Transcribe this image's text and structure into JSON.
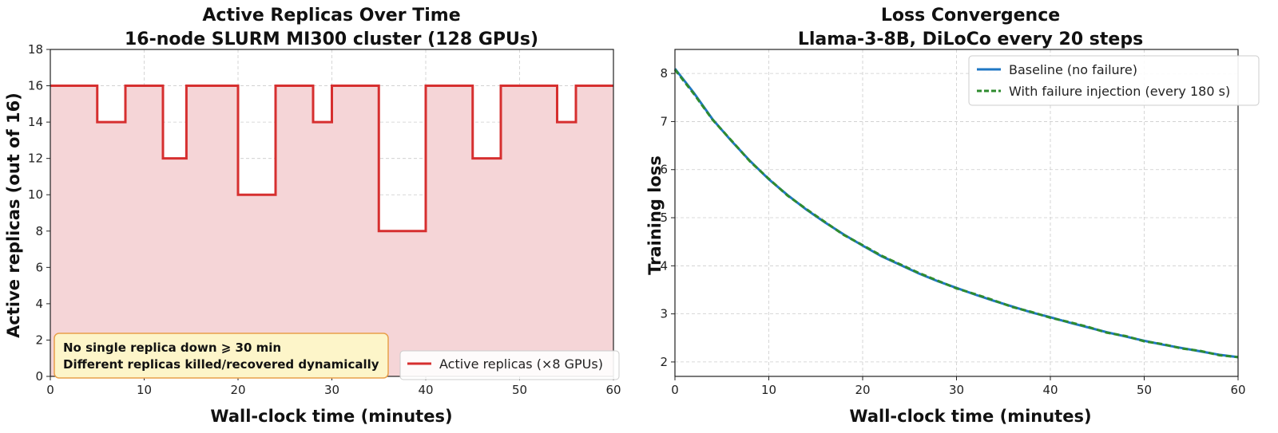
{
  "chart_data": [
    {
      "type": "line",
      "title": "Active Replicas Over Time",
      "subtitle": "16-node SLURM MI300 cluster (128 GPUs)",
      "xlabel": "Wall-clock time (minutes)",
      "ylabel": "Active replicas (out of 16)",
      "xlim": [
        0,
        60
      ],
      "ylim": [
        0,
        18
      ],
      "xticks": [
        0,
        10,
        20,
        30,
        40,
        50,
        60
      ],
      "yticks": [
        0,
        2,
        4,
        6,
        8,
        10,
        12,
        14,
        16,
        18
      ],
      "grid": true,
      "legend_placement": "lower-right",
      "step": true,
      "filled": true,
      "series": [
        {
          "name": "Active replicas (×8 GPUs)",
          "color": "#d62f2f",
          "fill_color": "#f5d5d7",
          "x": [
            0,
            5,
            5,
            8,
            8,
            12,
            12,
            14.5,
            14.5,
            20,
            20,
            24,
            24,
            28,
            28,
            30,
            30,
            35,
            35,
            40,
            40,
            45,
            45,
            48,
            48,
            54,
            54,
            56,
            56,
            60
          ],
          "y": [
            16,
            16,
            14,
            14,
            16,
            16,
            12,
            12,
            16,
            16,
            10,
            10,
            16,
            16,
            14,
            14,
            16,
            16,
            8,
            8,
            16,
            16,
            12,
            12,
            16,
            16,
            14,
            14,
            16,
            16
          ]
        }
      ],
      "annotation": {
        "lines": [
          "No single replica down ⩾ 30 min",
          "Different replicas killed/recovered dynamically"
        ],
        "box_color": "#fdf5c9",
        "border_color": "#e8a04a",
        "placement": "lower-left"
      }
    },
    {
      "type": "line",
      "title": "Loss Convergence",
      "subtitle": "Llama-3-8B, DiLoCo every 20 steps",
      "xlabel": "Wall-clock time (minutes)",
      "ylabel": "Training loss",
      "xlim": [
        0,
        60
      ],
      "ylim": [
        1.7,
        8.5
      ],
      "xticks": [
        0,
        10,
        20,
        30,
        40,
        50,
        60
      ],
      "yticks": [
        2,
        3,
        4,
        5,
        6,
        7,
        8
      ],
      "grid": true,
      "legend_placement": "top-right",
      "series": [
        {
          "name": "Baseline (no failure)",
          "color": "#1f77c4",
          "dash": "solid",
          "x": [
            0,
            2,
            4,
            6,
            8,
            10,
            12,
            14,
            16,
            18,
            20,
            22,
            24,
            26,
            28,
            30,
            32,
            34,
            36,
            38,
            40,
            42,
            44,
            46,
            48,
            50,
            52,
            54,
            56,
            58,
            60
          ],
          "y": [
            8.1,
            7.6,
            7.05,
            6.6,
            6.18,
            5.8,
            5.47,
            5.17,
            4.9,
            4.65,
            4.42,
            4.2,
            4.02,
            3.84,
            3.68,
            3.54,
            3.4,
            3.27,
            3.15,
            3.03,
            2.93,
            2.82,
            2.72,
            2.62,
            2.53,
            2.44,
            2.36,
            2.29,
            2.22,
            2.15,
            2.1
          ]
        },
        {
          "name": "With failure injection (every 180 s)",
          "color": "#2e8b2e",
          "dash": "dashed",
          "x": [
            0,
            2,
            4,
            6,
            8,
            10,
            12,
            14,
            16,
            18,
            20,
            22,
            24,
            26,
            28,
            30,
            32,
            34,
            36,
            38,
            40,
            42,
            44,
            46,
            48,
            50,
            52,
            54,
            56,
            58,
            60
          ],
          "y": [
            8.08,
            7.58,
            7.04,
            6.61,
            6.17,
            5.81,
            5.46,
            5.18,
            4.91,
            4.64,
            4.43,
            4.21,
            4.03,
            3.85,
            3.69,
            3.53,
            3.41,
            3.28,
            3.14,
            3.04,
            2.92,
            2.83,
            2.73,
            2.61,
            2.54,
            2.43,
            2.37,
            2.28,
            2.23,
            2.14,
            2.1
          ]
        }
      ]
    }
  ]
}
